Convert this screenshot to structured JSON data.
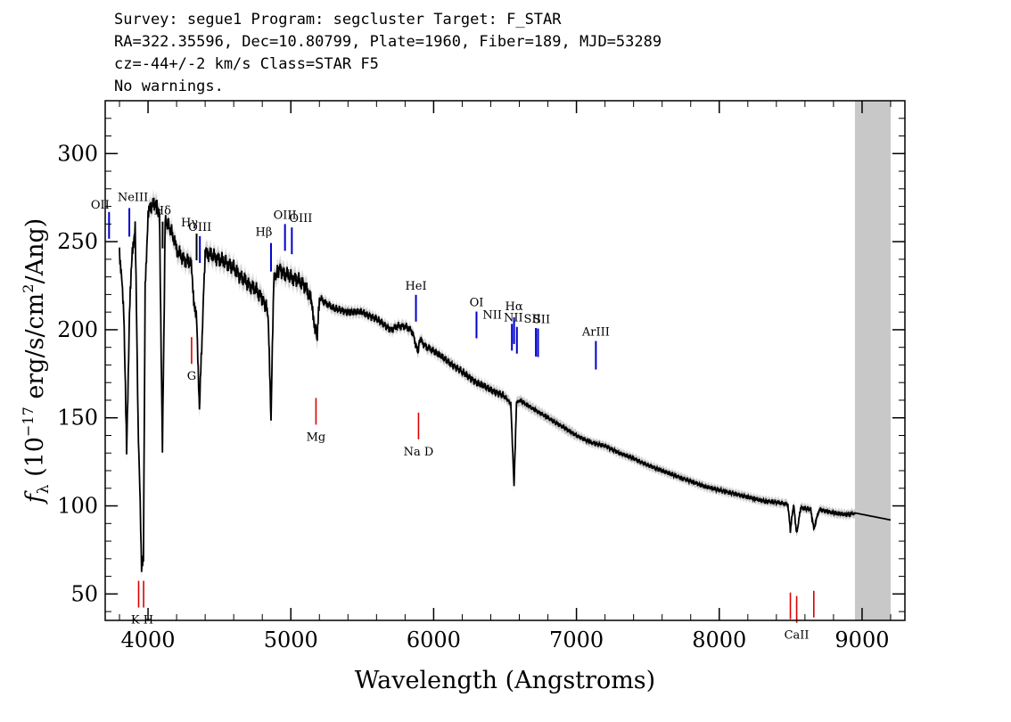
{
  "header": {
    "line1": "Survey: segue1 Program: segcluster Target: F_STAR",
    "line2": "RA=322.35596, Dec=10.80799, Plate=1960, Fiber=189, MJD=53289",
    "line3": "cz=-44+/-2 km/s Class=STAR F5",
    "line4": "No warnings."
  },
  "chart_data": {
    "type": "line",
    "xlabel": "Wavelength (Angstroms)",
    "ylabel": "f_λ (10^-17 erg/s/cm^2/Ang)",
    "xlim": [
      3700,
      9300
    ],
    "ylim": [
      35,
      330
    ],
    "xticks": [
      4000,
      5000,
      6000,
      7000,
      8000,
      9000
    ],
    "yticks": [
      50,
      100,
      150,
      200,
      250,
      300
    ],
    "masked_region": [
      8950,
      9200
    ],
    "series": [
      {
        "x": [
          3800,
          3830,
          3850,
          3870,
          3890,
          3910,
          3930,
          3945,
          3955,
          3968,
          3980,
          4000,
          4020,
          4050,
          4080,
          4101,
          4120,
          4150,
          4180,
          4200,
          4250,
          4300,
          4320,
          4340,
          4360,
          4400,
          4450,
          4500,
          4550,
          4600,
          4650,
          4700,
          4750,
          4800,
          4840,
          4861,
          4880,
          4920,
          4950,
          5000,
          5050,
          5100,
          5150,
          5167,
          5175,
          5185,
          5200,
          5250,
          5300,
          5400,
          5500,
          5600,
          5700,
          5750,
          5800,
          5850,
          5880,
          5893,
          5900,
          5950,
          6000,
          6100,
          6200,
          6300,
          6400,
          6500,
          6540,
          6563,
          6580,
          6600,
          6700,
          6800,
          6900,
          7000,
          7100,
          7200,
          7300,
          7400,
          7500,
          7600,
          7700,
          7800,
          7900,
          8000,
          8100,
          8200,
          8300,
          8400,
          8480,
          8498,
          8520,
          8542,
          8570,
          8640,
          8662,
          8700,
          8800,
          8900,
          8950,
          9200
        ],
        "y": [
          245,
          212,
          130,
          210,
          245,
          258,
          150,
          100,
          65,
          72,
          225,
          265,
          270,
          272,
          266,
          130,
          262,
          258,
          252,
          245,
          240,
          238,
          218,
          205,
          156,
          244,
          242,
          240,
          238,
          235,
          230,
          226,
          223,
          218,
          210,
          150,
          228,
          235,
          232,
          230,
          228,
          225,
          215,
          198,
          200,
          195,
          218,
          215,
          212,
          210,
          210,
          206,
          200,
          202,
          202,
          199,
          190,
          187,
          195,
          190,
          188,
          182,
          176,
          170,
          166,
          162,
          158,
          112,
          158,
          160,
          155,
          150,
          145,
          140,
          136,
          134,
          130,
          127,
          123,
          120,
          117,
          114,
          111,
          109,
          107,
          105,
          103,
          102,
          101,
          86,
          101,
          84,
          99,
          98,
          87,
          98,
          96,
          95,
          96,
          92
        ]
      }
    ],
    "emission_lines": [
      {
        "label": "OII",
        "wavelength": 3727
      },
      {
        "label": "NeIII",
        "wavelength": 3869
      },
      {
        "label": "Hδ",
        "wavelength": 4102
      },
      {
        "label": "Hγ",
        "wavelength": 4340
      },
      {
        "label": "OIII",
        "wavelength": 4363
      },
      {
        "label": "Hβ",
        "wavelength": 4861
      },
      {
        "label": "OIII",
        "wavelength": 4959
      },
      {
        "label": "OIII",
        "wavelength": 5007
      },
      {
        "label": "HeI",
        "wavelength": 5876
      },
      {
        "label": "OI",
        "wavelength": 6300
      },
      {
        "label": "NII",
        "wavelength": 6548
      },
      {
        "label": "Hα",
        "wavelength": 6563
      },
      {
        "label": "NII",
        "wavelength": 6583
      },
      {
        "label": "SII",
        "wavelength": 6716
      },
      {
        "label": "SII",
        "wavelength": 6731
      },
      {
        "label": "ArIII",
        "wavelength": 7136
      }
    ],
    "absorption_lines": [
      {
        "label": "K",
        "wavelength": 3934
      },
      {
        "label": "H",
        "wavelength": 3969
      },
      {
        "label": "G",
        "wavelength": 4305
      },
      {
        "label": "Mg",
        "wavelength": 5176
      },
      {
        "label": "Na D",
        "wavelength": 5894
      },
      {
        "label": "CaII",
        "wavelength": 8498
      },
      {
        "label": "CaII",
        "wavelength": 8542
      },
      {
        "label": "CaII",
        "wavelength": 8662
      }
    ],
    "colors": {
      "spectrum": "#000000",
      "error_band": "#b4b4b4",
      "emission": "#0000cc",
      "absorption": "#dd0000",
      "mask": "#c8c8c8"
    }
  }
}
